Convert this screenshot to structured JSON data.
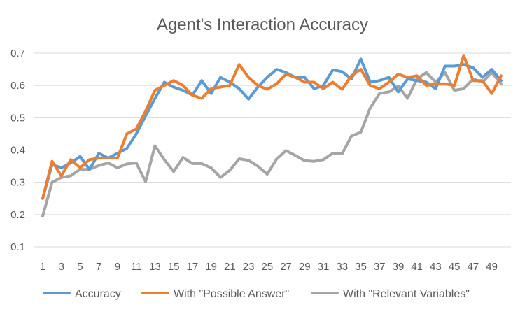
{
  "chart_data": {
    "type": "line",
    "title": "Agent's Interaction Accuracy",
    "xlabel": "",
    "ylabel": "",
    "x": [
      1,
      2,
      3,
      4,
      5,
      6,
      7,
      8,
      9,
      10,
      11,
      12,
      13,
      14,
      15,
      16,
      17,
      18,
      19,
      20,
      21,
      22,
      23,
      24,
      25,
      26,
      27,
      28,
      29,
      30,
      31,
      32,
      33,
      34,
      35,
      36,
      37,
      38,
      39,
      40,
      41,
      42,
      43,
      44,
      45,
      46,
      47,
      48,
      49,
      50
    ],
    "x_tick_labels": [
      "1",
      "3",
      "5",
      "7",
      "9",
      "11",
      "13",
      "15",
      "17",
      "19",
      "21",
      "23",
      "25",
      "27",
      "29",
      "31",
      "33",
      "35",
      "37",
      "39",
      "41",
      "43",
      "45",
      "47",
      "49"
    ],
    "y_tick_labels": [
      "0.1",
      "0.2",
      "0.3",
      "0.4",
      "0.5",
      "0.6",
      "0.7"
    ],
    "ylim": [
      0.1,
      0.7
    ],
    "grid": "horizontal",
    "legend_position": "bottom",
    "series": [
      {
        "name": "Accuracy",
        "color": "#5b9bd5",
        "values": [
          0.25,
          0.355,
          0.345,
          0.36,
          0.38,
          0.34,
          0.39,
          0.375,
          0.39,
          0.405,
          0.45,
          0.505,
          0.56,
          0.61,
          0.595,
          0.585,
          0.57,
          0.615,
          0.575,
          0.625,
          0.61,
          0.59,
          0.558,
          0.595,
          0.625,
          0.65,
          0.64,
          0.625,
          0.625,
          0.59,
          0.6,
          0.648,
          0.643,
          0.62,
          0.682,
          0.61,
          0.615,
          0.625,
          0.58,
          0.62,
          0.615,
          0.61,
          0.59,
          0.66,
          0.66,
          0.665,
          0.655,
          0.625,
          0.65,
          0.615
        ]
      },
      {
        "name": "With \"Possible Answer\"",
        "color": "#ed7d31",
        "values": [
          0.25,
          0.365,
          0.32,
          0.37,
          0.345,
          0.37,
          0.375,
          0.375,
          0.375,
          0.45,
          0.465,
          0.52,
          0.585,
          0.6,
          0.615,
          0.6,
          0.57,
          0.56,
          0.59,
          0.595,
          0.6,
          0.665,
          0.625,
          0.6,
          0.588,
          0.605,
          0.635,
          0.625,
          0.61,
          0.61,
          0.59,
          0.61,
          0.588,
          0.63,
          0.65,
          0.6,
          0.59,
          0.61,
          0.635,
          0.625,
          0.63,
          0.6,
          0.605,
          0.605,
          0.6,
          0.693,
          0.615,
          0.615,
          0.575,
          0.63
        ]
      },
      {
        "name": "With \"Relevant Variables\"",
        "color": "#a5a5a5",
        "values": [
          0.195,
          0.3,
          0.315,
          0.32,
          0.34,
          0.34,
          0.352,
          0.36,
          0.345,
          0.357,
          0.36,
          0.302,
          0.413,
          0.37,
          0.333,
          0.377,
          0.358,
          0.358,
          0.345,
          0.315,
          0.337,
          0.373,
          0.368,
          0.35,
          0.325,
          0.372,
          0.398,
          0.383,
          0.367,
          0.365,
          0.37,
          0.39,
          0.388,
          0.443,
          0.455,
          0.53,
          0.575,
          0.58,
          0.598,
          0.56,
          0.62,
          0.64,
          0.61,
          0.64,
          0.585,
          0.59,
          0.62,
          0.61,
          0.64,
          0.605
        ]
      }
    ]
  }
}
